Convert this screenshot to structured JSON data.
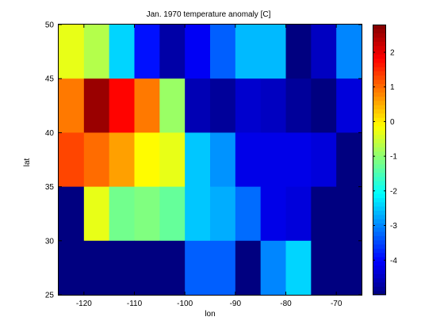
{
  "chart_data": {
    "type": "heatmap",
    "title": "Jan. 1970 temperature anomaly [C]",
    "xlabel": "lon",
    "ylabel": "lat",
    "x_ticks": [
      -120,
      -110,
      -100,
      -90,
      -80,
      -70
    ],
    "y_ticks": [
      25,
      30,
      35,
      40,
      45,
      50
    ],
    "xlim": [
      -125,
      -65
    ],
    "ylim": [
      25,
      50
    ],
    "cell_size_deg": 5,
    "x_centers": [
      -122.5,
      -117.5,
      -112.5,
      -107.5,
      -102.5,
      -97.5,
      -92.5,
      -87.5,
      -82.5,
      -77.5,
      -72.5,
      -67.5
    ],
    "y_centers": [
      47.5,
      42.5,
      37.5,
      32.5,
      27.5
    ],
    "values": [
      [
        -0.3,
        -0.7,
        -2.4,
        -3.9,
        -4.7,
        -4.1,
        -3.3,
        -2.6,
        -2.6,
        -5.0,
        -4.5,
        -3.0
      ],
      [
        0.9,
        2.6,
        1.8,
        0.9,
        -0.9,
        -4.6,
        -4.8,
        -4.4,
        -4.5,
        -4.8,
        -5.0,
        -4.3
      ],
      [
        1.3,
        1.0,
        0.6,
        -0.1,
        -0.3,
        -2.5,
        -2.9,
        -4.2,
        -4.2,
        -4.2,
        -4.3,
        -5.0
      ],
      [
        -5.0,
        -0.3,
        -1.2,
        -1.1,
        -1.3,
        -2.5,
        -2.7,
        -3.2,
        -4.2,
        -4.3,
        -5.0,
        -5.0
      ],
      [
        -5.0,
        -5.0,
        -5.0,
        -5.0,
        -5.0,
        -3.3,
        -3.3,
        -5.0,
        -3.0,
        -2.4,
        -5.0,
        -5.0
      ]
    ],
    "clim": [
      -5.0,
      2.8
    ],
    "colormap": "jet",
    "colorbar_ticks": [
      2,
      1,
      0,
      -1,
      -2,
      -3,
      -4
    ],
    "grid": false
  }
}
